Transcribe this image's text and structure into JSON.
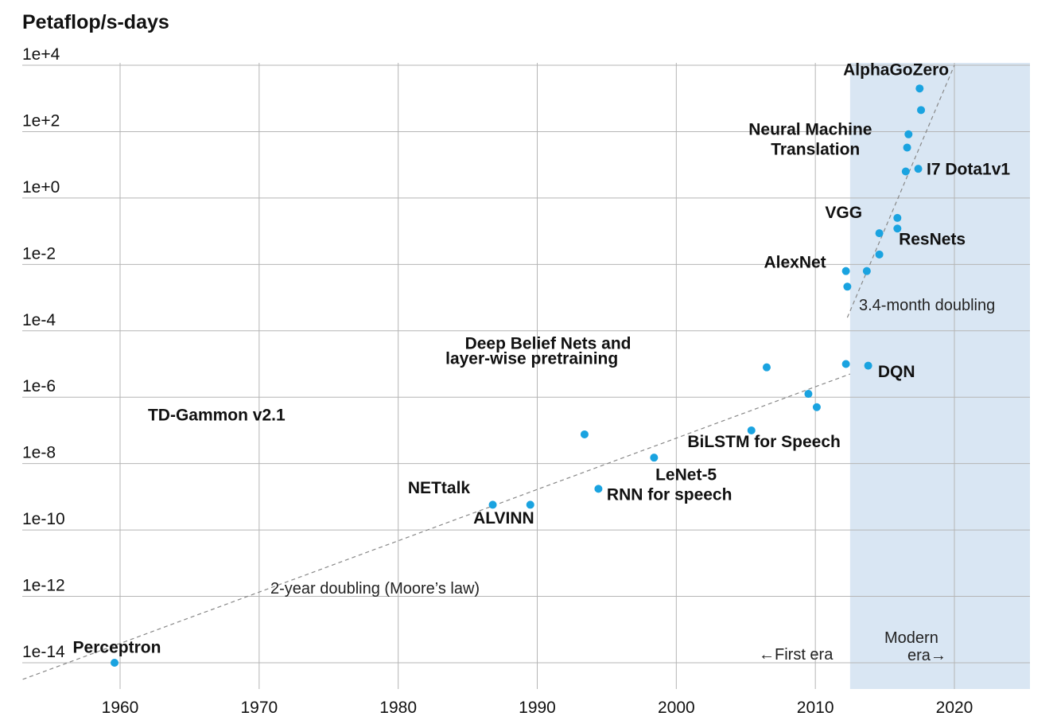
{
  "chart_data": {
    "type": "scatter",
    "title": "Petaflop/s-days",
    "ylabel": "Petaflop/s-days",
    "xlabel": "",
    "y_scale": "log10",
    "xlim": [
      1953,
      2025.5
    ],
    "ylim_log10": [
      -14.5,
      4
    ],
    "x_ticks": [
      1960,
      1970,
      1980,
      1990,
      2000,
      2010,
      2020
    ],
    "y_ticks": [
      {
        "log": 4,
        "label": "1e+4"
      },
      {
        "log": 2,
        "label": "1e+2"
      },
      {
        "log": 0,
        "label": "1e+0"
      },
      {
        "log": -2,
        "label": "1e-2"
      },
      {
        "log": -4,
        "label": "1e-4"
      },
      {
        "log": -6,
        "label": "1e-6"
      },
      {
        "log": -8,
        "label": "1e-8"
      },
      {
        "log": -10,
        "label": "1e-10"
      },
      {
        "log": -12,
        "label": "1e-12"
      },
      {
        "log": -14,
        "label": "1e-14"
      }
    ],
    "grid": true,
    "color": "#1aa3e0",
    "shaded_region": {
      "x_start": 2012.5,
      "x_end": 2025.5,
      "color": "#d9e6f3"
    },
    "points": [
      {
        "x": 1959.6,
        "y": -14
      },
      {
        "x": 1986.8,
        "y": -9.24
      },
      {
        "x": 1989.5,
        "y": -9.24
      },
      {
        "x": 1993.4,
        "y": -7.12
      },
      {
        "x": 1994.4,
        "y": -8.76
      },
      {
        "x": 1998.4,
        "y": -7.82
      },
      {
        "x": 2005.4,
        "y": -7.0
      },
      {
        "x": 2006.5,
        "y": -5.1
      },
      {
        "x": 2009.5,
        "y": -5.9
      },
      {
        "x": 2010.1,
        "y": -6.3
      },
      {
        "x": 2012.2,
        "y": -5.0
      },
      {
        "x": 2012.2,
        "y": -2.2
      },
      {
        "x": 2012.3,
        "y": -2.67
      },
      {
        "x": 2013.8,
        "y": -5.05
      },
      {
        "x": 2013.7,
        "y": -2.2
      },
      {
        "x": 2014.6,
        "y": -1.06
      },
      {
        "x": 2014.6,
        "y": -1.7
      },
      {
        "x": 2015.9,
        "y": -0.6
      },
      {
        "x": 2015.9,
        "y": -0.92
      },
      {
        "x": 2016.5,
        "y": 0.8
      },
      {
        "x": 2016.6,
        "y": 1.52
      },
      {
        "x": 2016.7,
        "y": 1.92
      },
      {
        "x": 2017.4,
        "y": 0.88
      },
      {
        "x": 2017.6,
        "y": 2.65
      },
      {
        "x": 2017.5,
        "y": 3.3
      }
    ],
    "annotations": [
      {
        "text": "Perceptron",
        "x": 1956.6,
        "y": -13.7
      },
      {
        "text": "NETtalk",
        "x": 1980.7,
        "y": -8.9
      },
      {
        "text": "ALVINN",
        "x": 1985.4,
        "y": -9.8
      },
      {
        "text": "TD-Gammon v2.1",
        "x": 1962,
        "y": -6.7
      },
      {
        "text": "RNN for speech",
        "x": 1995.0,
        "y": -9.1
      },
      {
        "text": "LeNet-5",
        "x": 1998.5,
        "y": -8.5
      },
      {
        "text": "BiLSTM for Speech",
        "x": 2000.8,
        "y": -7.5
      },
      {
        "text": "Deep Belief Nets and",
        "x": 1984.8,
        "y": -4.55
      },
      {
        "text": "layer-wise pretraining",
        "x": 1983.4,
        "y": -5.0
      },
      {
        "text": "DQN",
        "x": 2014.5,
        "y": -5.4
      },
      {
        "text": "AlexNet",
        "x": 2006.3,
        "y": -2.1
      },
      {
        "text": "VGG",
        "x": 2010.7,
        "y": -0.6
      },
      {
        "text": "ResNets",
        "x": 2016.0,
        "y": -1.4
      },
      {
        "text": "I7 Dota1v1",
        "x": 2018.0,
        "y": 0.7
      },
      {
        "text": "Neural Machine",
        "x": 2005.2,
        "y": 1.9
      },
      {
        "text": "Translation",
        "x": 2006.8,
        "y": 1.3
      },
      {
        "text": "AlphaGoZero",
        "x": 2012.0,
        "y": 3.7
      }
    ],
    "notes": {
      "moores_law": "2-year doubling (Moore’s law)",
      "fast_doubling": "3.4-month doubling",
      "first_era": "←First era",
      "modern_era_line1": "Modern",
      "modern_era_line2": "era→"
    },
    "trendlines": [
      {
        "name": "2-year doubling",
        "from": [
          1953,
          -14.5
        ],
        "to": [
          2012.5,
          -5.3
        ]
      },
      {
        "name": "3.4-month doubling",
        "from": [
          2012.3,
          -3.6
        ],
        "to": [
          2020.0,
          4.0
        ]
      }
    ]
  }
}
